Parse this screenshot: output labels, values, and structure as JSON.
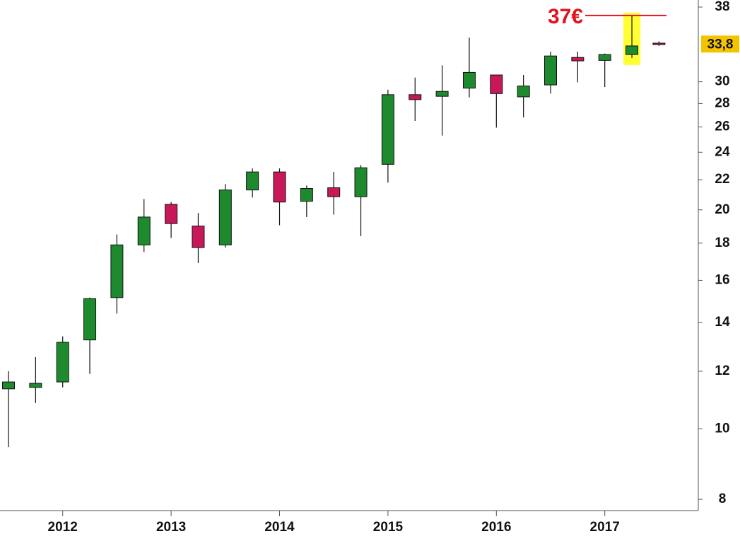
{
  "chart_data": {
    "type": "candlestick",
    "categories": [
      null,
      null,
      "2012",
      null,
      null,
      null,
      "2013",
      null,
      null,
      null,
      "2014",
      null,
      null,
      null,
      "2015",
      null,
      null,
      null,
      "2016",
      null,
      null,
      null,
      "2017",
      null,
      null
    ],
    "open": [
      11.35,
      11.4,
      11.6,
      13.25,
      15.15,
      17.9,
      20.35,
      19.0,
      17.9,
      21.3,
      22.55,
      20.55,
      21.45,
      20.85,
      23.1,
      28.8,
      28.65,
      29.4,
      30.65,
      28.6,
      29.7,
      32.4,
      32.1,
      32.7,
      33.9
    ],
    "high": [
      12.0,
      12.55,
      13.4,
      15.15,
      18.5,
      20.7,
      20.5,
      19.8,
      21.7,
      22.8,
      22.8,
      21.6,
      22.55,
      23.05,
      29.25,
      30.4,
      31.6,
      34.5,
      30.65,
      30.65,
      33.0,
      33.0,
      32.8,
      37.0,
      34.1
    ],
    "low": [
      9.44,
      10.85,
      11.4,
      11.9,
      14.4,
      17.5,
      18.3,
      16.9,
      17.75,
      20.8,
      19.05,
      19.55,
      19.7,
      18.4,
      21.8,
      26.5,
      25.3,
      28.55,
      25.95,
      26.8,
      28.9,
      29.95,
      29.5,
      32.35,
      33.6
    ],
    "close": [
      11.6,
      11.55,
      13.15,
      15.1,
      17.9,
      19.55,
      19.15,
      17.75,
      21.3,
      22.55,
      20.5,
      21.4,
      20.85,
      22.85,
      28.8,
      28.35,
      29.1,
      30.9,
      28.9,
      29.6,
      32.55,
      32.05,
      32.7,
      33.6,
      33.8
    ],
    "up_color": "#1e8a2e",
    "down_color": "#c8185a",
    "log_scale": true,
    "ylim": [
      7.72,
      38.86
    ],
    "yticks": [
      8,
      10,
      12,
      14,
      16,
      18,
      20,
      22,
      24,
      26,
      28,
      30,
      38
    ],
    "last_value": {
      "value": 33.8,
      "label": "33,8"
    },
    "annotation": {
      "text": "37€",
      "value": 37,
      "color": "#e0141e"
    },
    "highlight_category_index": 23
  }
}
